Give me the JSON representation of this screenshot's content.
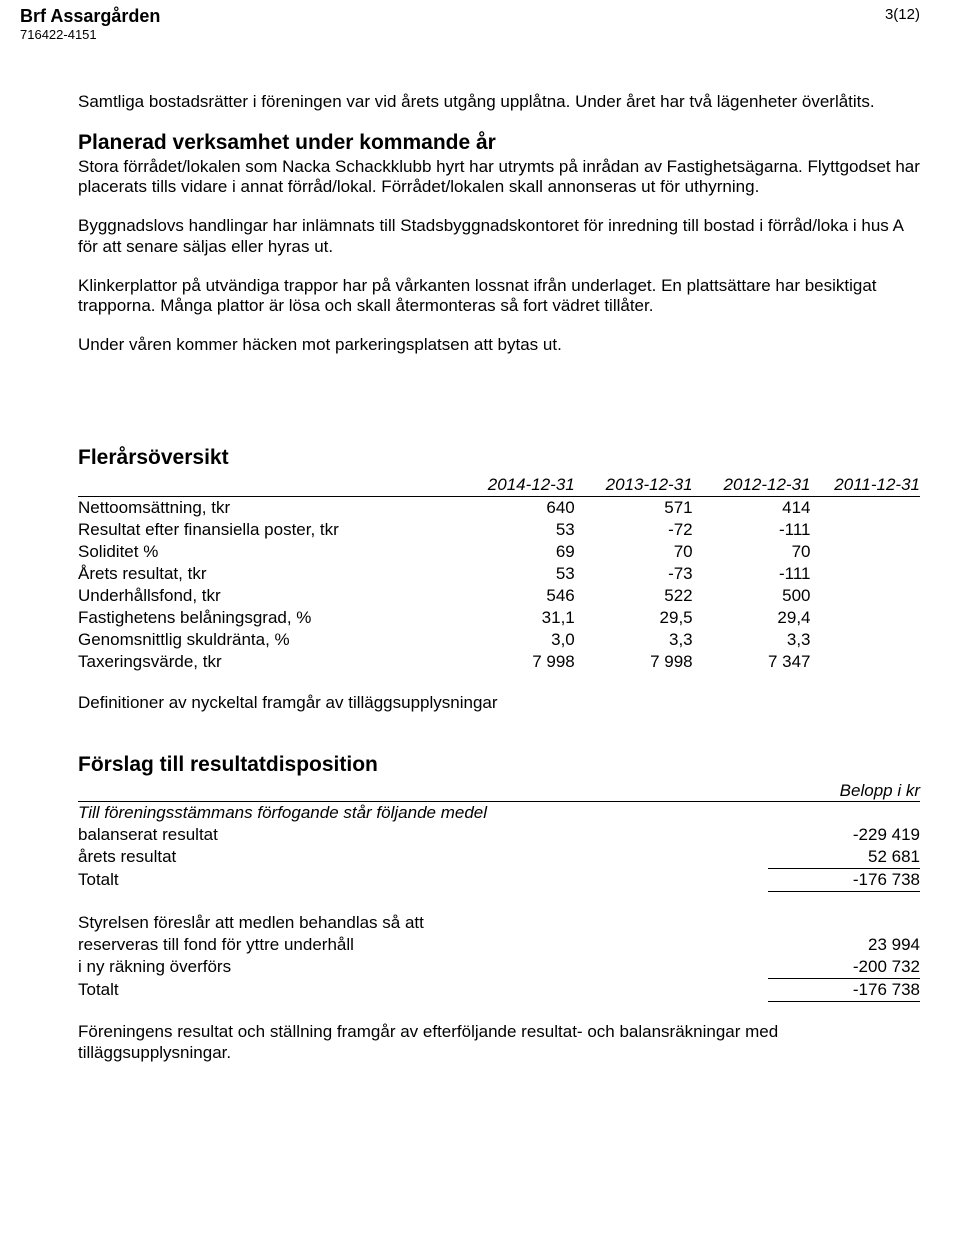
{
  "header": {
    "org_name": "Brf Assargården",
    "org_id": "716422-4151",
    "page_num": "3(12)"
  },
  "intro_para": "Samtliga bostadsrätter i föreningen var vid årets utgång upplåtna. Under året har två lägenheter överlåtits.",
  "section1_title": "Planerad verksamhet under kommande år",
  "section1_p1": "Stora förrådet/lokalen som Nacka Schackklubb hyrt har utrymts på inrådan av Fastighetsägarna. Flyttgodset har placerats tills vidare i annat förråd/lokal. Förrådet/lokalen skall annonseras ut för uthyrning.",
  "section1_p2": "Byggnadslovs handlingar har inlämnats till Stadsbyggnadskontoret för inredning till bostad i förråd/loka i hus A för att senare säljas eller hyras ut.",
  "section1_p3": "Klinkerplattor på utvändiga trappor har på vårkanten lossnat ifrån underlaget. En plattsättare har besiktigat trapporna. Många plattor är lösa och skall återmonteras så fort vädret tillåter.",
  "section1_p4": "Under våren kommer häcken mot parkeringsplatsen att bytas ut.",
  "fler_title": "Flerårsöversikt",
  "fler_headers": [
    "2014-12-31",
    "2013-12-31",
    "2012-12-31",
    "2011-12-31"
  ],
  "fler_rows": [
    {
      "label": "Nettoomsättning, tkr",
      "v": [
        "640",
        "571",
        "414",
        ""
      ]
    },
    {
      "label": "Resultat efter finansiella poster, tkr",
      "v": [
        "53",
        "-72",
        "-111",
        ""
      ]
    },
    {
      "label": "Soliditet %",
      "v": [
        "69",
        "70",
        "70",
        ""
      ]
    },
    {
      "label": "Årets resultat, tkr",
      "v": [
        "53",
        "-73",
        "-111",
        ""
      ]
    },
    {
      "label": "Underhållsfond, tkr",
      "v": [
        "546",
        "522",
        "500",
        ""
      ]
    },
    {
      "label": "Fastighetens belåningsgrad, %",
      "v": [
        "31,1",
        "29,5",
        "29,4",
        ""
      ]
    },
    {
      "label": "Genomsnittlig skuldränta, %",
      "v": [
        "3,0",
        "3,3",
        "3,3",
        ""
      ]
    },
    {
      "label": "Taxeringsvärde, tkr",
      "v": [
        "7 998",
        "7 998",
        "7 347",
        ""
      ]
    }
  ],
  "def_note": "Definitioner av nyckeltal framgår av tilläggsupplysningar",
  "disp_title": "Förslag till resultatdisposition",
  "belopp_label": "Belopp i kr",
  "disp_intro": "Till föreningsstämmans förfogande står följande medel",
  "disp_rows1": [
    {
      "label": "balanserat resultat",
      "value": "-229 419"
    },
    {
      "label": "årets resultat",
      "value": "52 681"
    }
  ],
  "disp_total1": {
    "label": "Totalt",
    "value": "-176 738"
  },
  "disp_intro2": "Styrelsen föreslår att medlen behandlas så att",
  "disp_rows2": [
    {
      "label": "reserveras till fond för yttre underhåll",
      "value": "23 994"
    },
    {
      "label": "i ny räkning överförs",
      "value": "-200 732"
    }
  ],
  "disp_total2": {
    "label": "Totalt",
    "value": "-176 738"
  },
  "footer_para": "Föreningens resultat och ställning framgår av efterföljande resultat- och balansräkningar med tilläggsupplysningar."
}
